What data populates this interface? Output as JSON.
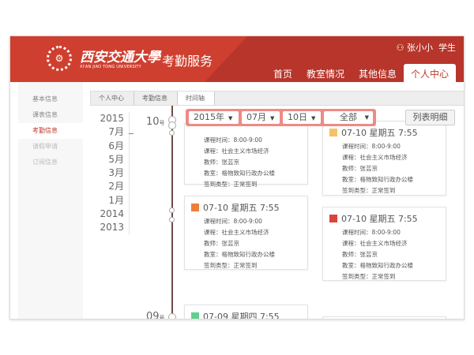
{
  "header": {
    "university_cn": "西安交通大學",
    "university_en": "XI'AN JIAO TONG UNIVERSITY",
    "app_title": "考勤服务",
    "user_name": "张小小",
    "user_role": "学生",
    "nav": [
      {
        "label": "首页"
      },
      {
        "label": "教室情况"
      },
      {
        "label": "其他信息"
      },
      {
        "label": "个人中心",
        "active": true
      }
    ]
  },
  "sidebar": {
    "items": [
      {
        "label": "基本信息"
      },
      {
        "label": "课表信息"
      },
      {
        "label": "考勤信息",
        "active": true
      },
      {
        "label": "请假申请"
      },
      {
        "label": "订阅信息"
      }
    ]
  },
  "breadcrumb": [
    "个人中心",
    "考勤信息",
    "时间轴"
  ],
  "years": [
    "2015",
    "7月",
    "6月",
    "5月",
    "3月",
    "2月",
    "1月",
    "2014",
    "2013"
  ],
  "days": [
    {
      "num": "10",
      "suffix": "号"
    },
    {
      "num": "09",
      "suffix": "号"
    }
  ],
  "filter": {
    "year": "2015年",
    "month": "07月",
    "day": "10日",
    "type": "全部"
  },
  "list_button": "列表明细",
  "colors": {
    "accent": "#c0392b",
    "header": "#b8352b"
  },
  "cards": [
    {
      "title": "",
      "icon_color": "",
      "rows": [
        "课程时间：8:00-9:00",
        "课程：社会主义市场经济",
        "教师：张芸京",
        "教室：格物致知行政办公楼",
        "签到类型：正常签到"
      ]
    },
    {
      "title": "07-10 星期五 7:55",
      "icon_color": "#f5c26b",
      "rows": [
        "课程时间：8:00-9:00",
        "课程：社会主义市场经济",
        "教师：张芸京",
        "教室：格物致知行政办公楼",
        "签到类型：正常签到"
      ]
    },
    {
      "title": "07-10 星期五 7:55",
      "icon_color": "#ef7d3c",
      "rows": [
        "课程时间：8:00-9:00",
        "课程：社会主义市场经济",
        "教师：张芸京",
        "教室：格物致知行政办公楼",
        "签到类型：正常签到"
      ]
    },
    {
      "title": "07-10 星期五 7:55",
      "icon_color": "#d9453a",
      "rows": [
        "课程时间：8:00-9:00",
        "课程：社会主义市场经济",
        "教师：张芸京",
        "教室：格物致知行政办公楼",
        "签到类型：正常签到"
      ]
    },
    {
      "title": "07-09 星期四 7:55",
      "icon_color": "#5fd08e",
      "rows": []
    }
  ]
}
